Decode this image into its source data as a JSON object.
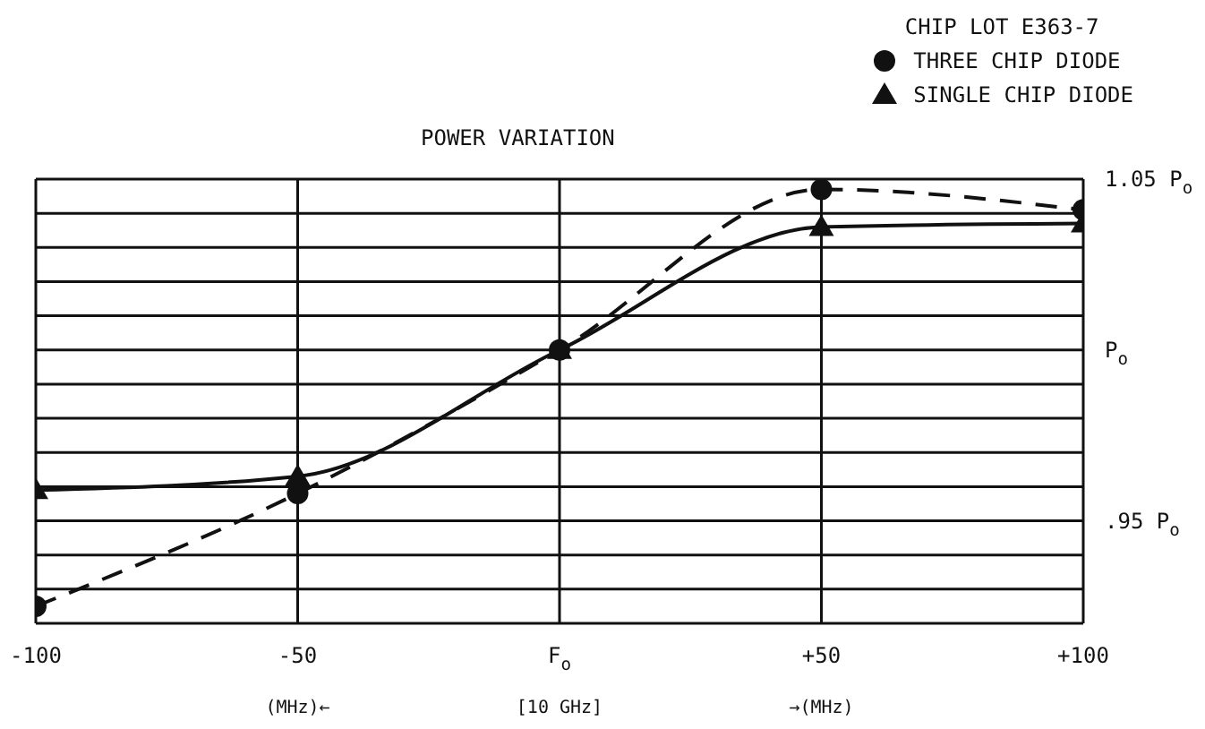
{
  "chart_data": {
    "type": "line",
    "title": "POWER VARIATION",
    "legend_title": "CHIP LOT E363-7",
    "legend": "top right",
    "grid": true,
    "x": [
      -100,
      -50,
      0,
      50,
      100
    ],
    "series": [
      {
        "name": "THREE CHIP DIODE",
        "color": "#111111",
        "values": [
          0.925,
          0.958,
          1.0,
          1.047,
          1.041
        ],
        "marker": "circle",
        "line_style": "dashed"
      },
      {
        "name": "SINGLE CHIP DIODE",
        "color": "#111111",
        "values": [
          0.959,
          0.963,
          1.0,
          1.036,
          1.037
        ],
        "marker": "triangle",
        "line_style": "solid"
      }
    ],
    "xlim": [
      -100,
      100
    ],
    "xticks": [
      {
        "value": -100,
        "label": "-100"
      },
      {
        "value": -50,
        "label": "-50"
      },
      {
        "value": 0,
        "label": "F$_{o}$"
      },
      {
        "value": 50,
        "label": "+50"
      },
      {
        "value": 100,
        "label": "+100"
      }
    ],
    "annotations": [
      "(MHz)←",
      "[10 GHz]",
      "→(MHz)"
    ],
    "ylim": [
      0.92,
      1.05
    ],
    "yticks": [
      {
        "value": 0.92,
        "label": null
      },
      {
        "value": 0.93,
        "label": null
      },
      {
        "value": 0.94,
        "label": null
      },
      {
        "value": 0.95,
        "label": ".95 P$_{o}$"
      },
      {
        "value": 0.96,
        "label": null
      },
      {
        "value": 0.97,
        "label": null
      },
      {
        "value": 0.98,
        "label": null
      },
      {
        "value": 0.99,
        "label": null
      },
      {
        "value": 1.0,
        "label": "P$_{o}$"
      },
      {
        "value": 1.01,
        "label": null
      },
      {
        "value": 1.02,
        "label": null
      },
      {
        "value": 1.03,
        "label": null
      },
      {
        "value": 1.04,
        "label": null
      },
      {
        "value": 1.05,
        "label": "1.05 P$_{o}$"
      }
    ]
  }
}
